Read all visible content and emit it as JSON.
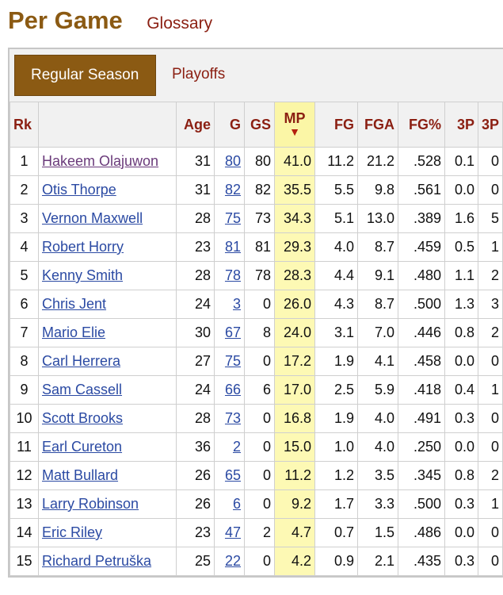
{
  "header": {
    "title": "Per Game",
    "glossary_label": "Glossary"
  },
  "tabs": [
    {
      "label": "Regular Season",
      "active": true
    },
    {
      "label": "Playoffs",
      "active": false
    }
  ],
  "table": {
    "columns": [
      "Rk",
      "",
      "Age",
      "G",
      "GS",
      "MP",
      "FG",
      "FGA",
      "FG%",
      "3P",
      "3P"
    ],
    "sorted_column": "MP",
    "sort_indicator": "▼",
    "colors": {
      "header_text": "#8b1f12",
      "title": "#8b5a13",
      "link": "#2b4aa3",
      "visited_link": "#6a3a7a",
      "sorted_bg": "#fdf9b4",
      "tab_active_bg": "#8b5a13"
    },
    "rows": [
      {
        "rk": "1",
        "player": "Hakeem Olajuwon",
        "age": "31",
        "g": "80",
        "gs": "80",
        "mp": "41.0",
        "fg": "11.2",
        "fga": "21.2",
        "fgp": ".528",
        "3p": "0.1",
        "3pa": "0"
      },
      {
        "rk": "2",
        "player": "Otis Thorpe",
        "age": "31",
        "g": "82",
        "gs": "82",
        "mp": "35.5",
        "fg": "5.5",
        "fga": "9.8",
        "fgp": ".561",
        "3p": "0.0",
        "3pa": "0"
      },
      {
        "rk": "3",
        "player": "Vernon Maxwell",
        "age": "28",
        "g": "75",
        "gs": "73",
        "mp": "34.3",
        "fg": "5.1",
        "fga": "13.0",
        "fgp": ".389",
        "3p": "1.6",
        "3pa": "5"
      },
      {
        "rk": "4",
        "player": "Robert Horry",
        "age": "23",
        "g": "81",
        "gs": "81",
        "mp": "29.3",
        "fg": "4.0",
        "fga": "8.7",
        "fgp": ".459",
        "3p": "0.5",
        "3pa": "1"
      },
      {
        "rk": "5",
        "player": "Kenny Smith",
        "age": "28",
        "g": "78",
        "gs": "78",
        "mp": "28.3",
        "fg": "4.4",
        "fga": "9.1",
        "fgp": ".480",
        "3p": "1.1",
        "3pa": "2"
      },
      {
        "rk": "6",
        "player": "Chris Jent",
        "age": "24",
        "g": "3",
        "gs": "0",
        "mp": "26.0",
        "fg": "4.3",
        "fga": "8.7",
        "fgp": ".500",
        "3p": "1.3",
        "3pa": "3"
      },
      {
        "rk": "7",
        "player": "Mario Elie",
        "age": "30",
        "g": "67",
        "gs": "8",
        "mp": "24.0",
        "fg": "3.1",
        "fga": "7.0",
        "fgp": ".446",
        "3p": "0.8",
        "3pa": "2"
      },
      {
        "rk": "8",
        "player": "Carl Herrera",
        "age": "27",
        "g": "75",
        "gs": "0",
        "mp": "17.2",
        "fg": "1.9",
        "fga": "4.1",
        "fgp": ".458",
        "3p": "0.0",
        "3pa": "0"
      },
      {
        "rk": "9",
        "player": "Sam Cassell",
        "age": "24",
        "g": "66",
        "gs": "6",
        "mp": "17.0",
        "fg": "2.5",
        "fga": "5.9",
        "fgp": ".418",
        "3p": "0.4",
        "3pa": "1"
      },
      {
        "rk": "10",
        "player": "Scott Brooks",
        "age": "28",
        "g": "73",
        "gs": "0",
        "mp": "16.8",
        "fg": "1.9",
        "fga": "4.0",
        "fgp": ".491",
        "3p": "0.3",
        "3pa": "0"
      },
      {
        "rk": "11",
        "player": "Earl Cureton",
        "age": "36",
        "g": "2",
        "gs": "0",
        "mp": "15.0",
        "fg": "1.0",
        "fga": "4.0",
        "fgp": ".250",
        "3p": "0.0",
        "3pa": "0"
      },
      {
        "rk": "12",
        "player": "Matt Bullard",
        "age": "26",
        "g": "65",
        "gs": "0",
        "mp": "11.2",
        "fg": "1.2",
        "fga": "3.5",
        "fgp": ".345",
        "3p": "0.8",
        "3pa": "2"
      },
      {
        "rk": "13",
        "player": "Larry Robinson",
        "age": "26",
        "g": "6",
        "gs": "0",
        "mp": "9.2",
        "fg": "1.7",
        "fga": "3.3",
        "fgp": ".500",
        "3p": "0.3",
        "3pa": "1"
      },
      {
        "rk": "14",
        "player": "Eric Riley",
        "age": "23",
        "g": "47",
        "gs": "2",
        "mp": "4.7",
        "fg": "0.7",
        "fga": "1.5",
        "fgp": ".486",
        "3p": "0.0",
        "3pa": "0"
      },
      {
        "rk": "15",
        "player": "Richard Petruška",
        "age": "25",
        "g": "22",
        "gs": "0",
        "mp": "4.2",
        "fg": "0.9",
        "fga": "2.1",
        "fgp": ".435",
        "3p": "0.3",
        "3pa": "0"
      }
    ]
  }
}
